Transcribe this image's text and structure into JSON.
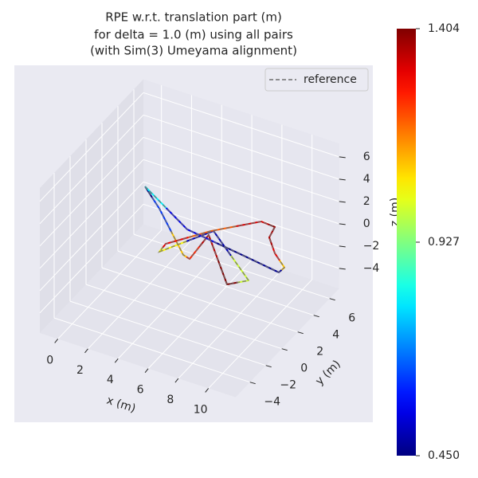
{
  "chart_data": {
    "type": "line3d",
    "title": [
      "RPE w.r.t. translation part (m)",
      "for delta = 1.0 (m) using all pairs",
      "(with Sim(3) Umeyama alignment)"
    ],
    "xlabel": "x (m)",
    "ylabel": "y (m)",
    "zlabel": "z (m)",
    "xlim": [
      -1.2,
      11.8
    ],
    "ylim": [
      -5.8,
      7.2
    ],
    "zlim": [
      -5.8,
      7.2
    ],
    "xticks": [
      0,
      2,
      4,
      6,
      8,
      10
    ],
    "yticks": [
      {
        "value": -4,
        "label": "−4"
      },
      {
        "value": -2,
        "label": "−2"
      },
      0,
      2,
      4,
      6
    ],
    "zticks": [
      {
        "value": -4,
        "label": "−4"
      },
      {
        "value": -2,
        "label": "−2"
      },
      0,
      2,
      4,
      6
    ],
    "grid": true,
    "legend": "upper right",
    "series": [
      {
        "name": "reference",
        "color": "#6e6e6e",
        "linestyle": "dashed",
        "x": [
          0.18,
          1.98,
          5.41,
          5.93,
          5.74,
          9.05,
          9.95,
          5.79,
          4.05,
          3.99,
          5.67,
          7.75,
          8.7,
          8.92,
          9.97,
          11.14,
          11.09,
          8.63,
          4.38,
          0.18
        ],
        "y": [
          4.8,
          3.2,
          -0.29,
          -0.47,
          2.28,
          -1.67,
          -0.67,
          2.79,
          -0.72,
          0.19,
          2.72,
          5.08,
          4.99,
          3.87,
          2.59,
          1.58,
          0.97,
          1.42,
          2.15,
          4.8
        ],
        "z": [
          0,
          0,
          0,
          0,
          0,
          0,
          0,
          0,
          0,
          0,
          0,
          0,
          0,
          0,
          0,
          0,
          0,
          0,
          0,
          0
        ]
      }
    ],
    "trajectory": {
      "x": [
        0.18,
        1.98,
        5.41,
        5.93,
        5.74,
        9.05,
        9.95,
        5.79,
        4.05,
        3.99,
        5.67,
        7.75,
        8.7,
        8.92,
        9.97,
        11.14,
        11.09,
        8.63,
        4.38,
        0.18
      ],
      "y": [
        4.8,
        3.2,
        -0.29,
        -0.47,
        2.28,
        -1.67,
        -0.67,
        2.79,
        -0.72,
        0.19,
        2.72,
        5.08,
        4.99,
        3.87,
        2.59,
        1.58,
        0.97,
        1.42,
        2.15,
        4.8
      ],
      "z": [
        0,
        0,
        0,
        0,
        0,
        0,
        0,
        0,
        0,
        0,
        0,
        0,
        0,
        0,
        0,
        0,
        0,
        0,
        0,
        0
      ],
      "error": [
        0.45,
        0.62,
        1.1,
        1.25,
        1.35,
        1.4,
        1.0,
        0.5,
        1.05,
        1.3,
        1.2,
        1.32,
        1.38,
        1.36,
        1.3,
        1.1,
        0.47,
        0.46,
        0.55,
        0.8
      ]
    },
    "colorbar": {
      "colormap": "jet",
      "clim": [
        0.45,
        1.404
      ],
      "ticks": [
        {
          "value": 0.45,
          "label": "0.450"
        },
        0.927,
        1.404
      ]
    }
  }
}
